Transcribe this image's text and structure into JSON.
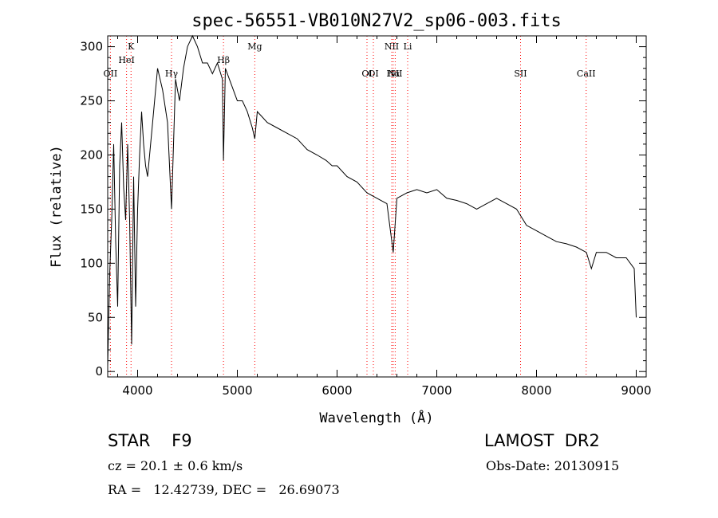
{
  "chart_data": {
    "type": "line",
    "title": "spec-56551-VB010N27V2_sp06-003.fits",
    "xlabel": "Wavelength (Å)",
    "ylabel": "Flux (relative)",
    "xlim": [
      3700,
      9100
    ],
    "ylim": [
      -5,
      310
    ],
    "x_ticks": [
      4000,
      5000,
      6000,
      7000,
      8000,
      9000
    ],
    "y_ticks": [
      0,
      50,
      100,
      150,
      200,
      250,
      300
    ],
    "grid": false,
    "line_color": "#000000",
    "marker_color": "#ff0000",
    "lines": [
      {
        "label": "OII",
        "wave": 3727,
        "row": 3
      },
      {
        "label": "K",
        "wave": 3934,
        "row": 0
      },
      {
        "label": "HeI",
        "wave": 3889,
        "row": 1
      },
      {
        "label": "Hγ",
        "wave": 4340,
        "row": 2
      },
      {
        "label": "Hβ",
        "wave": 4861,
        "row": 1
      },
      {
        "label": "Mg",
        "wave": 5175,
        "row": 0
      },
      {
        "label": "OI",
        "wave": 6300,
        "row": 3
      },
      {
        "label": "OI",
        "wave": 6364,
        "row": 2
      },
      {
        "label": "NII",
        "wave": 6548,
        "row": 0
      },
      {
        "label": "NII",
        "wave": 6583,
        "row": 2
      },
      {
        "label": "Hα",
        "wave": 6563,
        "row": 3
      },
      {
        "label": "Li",
        "wave": 6708,
        "row": 0
      },
      {
        "label": "SII",
        "wave": 7840,
        "row": 3
      },
      {
        "label": "CaII",
        "wave": 8498,
        "row": 2
      }
    ],
    "spectrum": {
      "x": [
        3700,
        3720,
        3740,
        3760,
        3780,
        3800,
        3820,
        3840,
        3860,
        3880,
        3900,
        3920,
        3940,
        3960,
        3980,
        4000,
        4020,
        4040,
        4060,
        4080,
        4100,
        4150,
        4200,
        4250,
        4300,
        4340,
        4380,
        4420,
        4460,
        4500,
        4550,
        4600,
        4650,
        4700,
        4750,
        4800,
        4850,
        4861,
        4880,
        4920,
        4960,
        5000,
        5050,
        5100,
        5150,
        5175,
        5200,
        5250,
        5300,
        5400,
        5500,
        5600,
        5700,
        5800,
        5890,
        5950,
        6000,
        6100,
        6200,
        6300,
        6400,
        6500,
        6563,
        6600,
        6700,
        6800,
        6900,
        7000,
        7100,
        7200,
        7300,
        7400,
        7500,
        7600,
        7700,
        7800,
        7900,
        8000,
        8100,
        8200,
        8300,
        8400,
        8500,
        8550,
        8600,
        8700,
        8800,
        8900,
        8980,
        9000
      ],
      "y": [
        5,
        90,
        140,
        210,
        120,
        60,
        190,
        230,
        170,
        140,
        210,
        140,
        25,
        180,
        60,
        150,
        200,
        240,
        210,
        190,
        180,
        230,
        280,
        260,
        230,
        150,
        270,
        250,
        280,
        300,
        320,
        300,
        285,
        285,
        275,
        285,
        270,
        195,
        280,
        270,
        260,
        250,
        250,
        240,
        225,
        215,
        240,
        235,
        230,
        225,
        220,
        215,
        205,
        200,
        195,
        190,
        190,
        180,
        175,
        165,
        160,
        155,
        110,
        160,
        165,
        168,
        165,
        168,
        160,
        158,
        155,
        150,
        155,
        160,
        155,
        150,
        135,
        130,
        125,
        120,
        118,
        115,
        110,
        95,
        110,
        110,
        105,
        105,
        95,
        50
      ]
    }
  },
  "info": {
    "object": "STAR    F9",
    "survey": "LAMOST  DR2",
    "cz": "cz = 20.1 ± 0.6 km/s",
    "obs_date": "Obs-Date: 20130915",
    "coords": "RA =   12.42739, DEC =   26.69073"
  }
}
